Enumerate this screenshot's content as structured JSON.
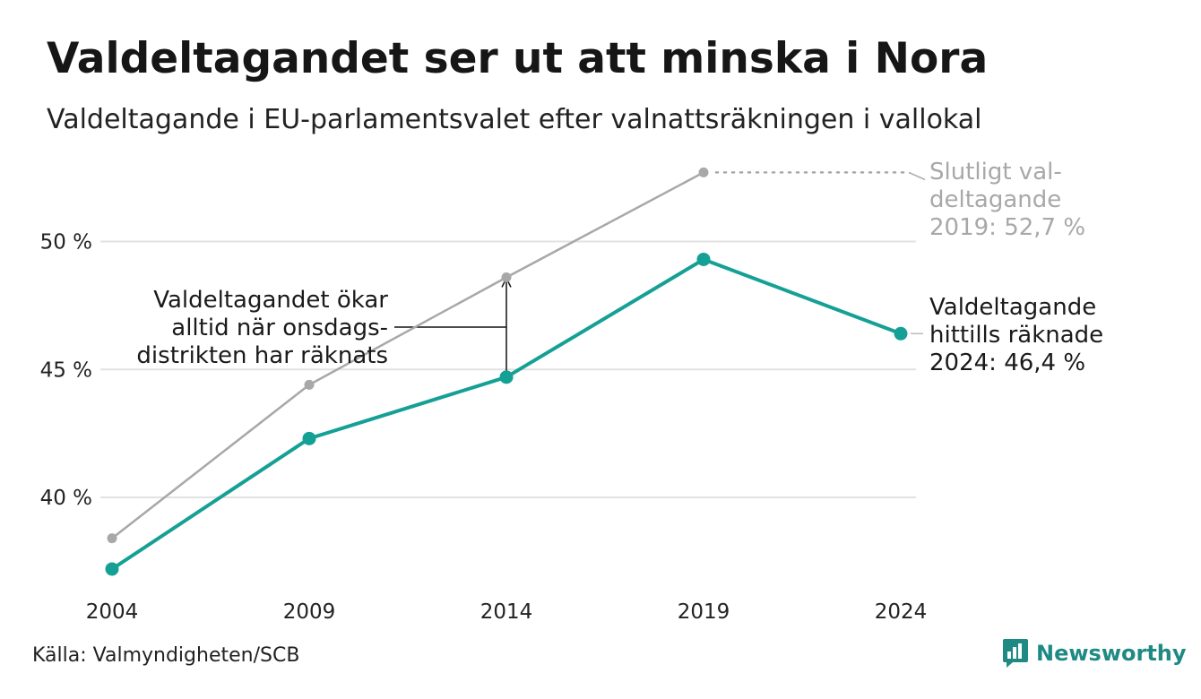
{
  "title": "Valdeltagandet ser ut att minska i Nora",
  "subtitle": "Valdeltagande i EU-parlamentsvalet efter valnattsräkningen i vallokal",
  "source": "Källa: Valmyndigheten/SCB",
  "brand": {
    "name": "Newsworthy",
    "icon": "bar-chart-speech-bubble-icon",
    "color": "#1f8a83"
  },
  "chart_data": {
    "type": "line",
    "categories": [
      "2004",
      "2009",
      "2014",
      "2019",
      "2024"
    ],
    "ylim": [
      36.5,
      54
    ],
    "yticks": [
      {
        "value": 40,
        "label": "40 %"
      },
      {
        "value": 45,
        "label": "45 %"
      },
      {
        "value": 50,
        "label": "50 %"
      }
    ],
    "grid": true,
    "series": [
      {
        "key": "final",
        "color": "#a8a8a8",
        "values": [
          38.4,
          44.4,
          48.6,
          52.7,
          null
        ]
      },
      {
        "key": "election_night",
        "color": "#15a096",
        "values": [
          37.2,
          42.3,
          44.7,
          49.3,
          46.4
        ]
      }
    ],
    "annotations": {
      "final_label": [
        "Slutligt val-",
        "deltagande",
        "2019: 52,7 %"
      ],
      "night_label": [
        "Valdeltagande",
        "hittills räknade",
        "2024: 46,4 %"
      ],
      "gap_note": [
        "Valdeltagandet ökar",
        "alltid när onsdags-",
        "distrikten har räknats"
      ]
    }
  }
}
